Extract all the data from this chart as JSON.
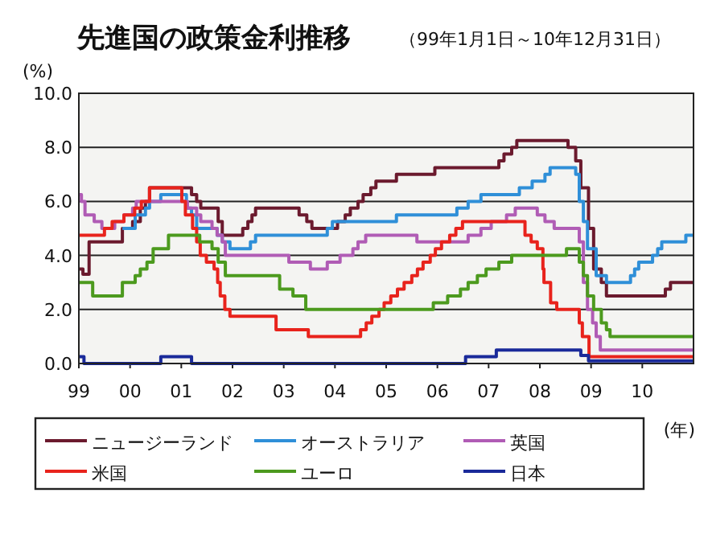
{
  "chart_data": {
    "type": "step",
    "title": "先進国の政策金利推移",
    "subtitle": "（99年1月1日～10年12月31日）",
    "xlabel": "(年)",
    "ylabel": "(%)",
    "xlim": [
      1999,
      2011
    ],
    "ylim": [
      0,
      10
    ],
    "xticks": [
      {
        "value": 1999,
        "label": "99"
      },
      {
        "value": 2000,
        "label": "00"
      },
      {
        "value": 2001,
        "label": "01"
      },
      {
        "value": 2002,
        "label": "02"
      },
      {
        "value": 2003,
        "label": "03"
      },
      {
        "value": 2004,
        "label": "04"
      },
      {
        "value": 2005,
        "label": "05"
      },
      {
        "value": 2006,
        "label": "06"
      },
      {
        "value": 2007,
        "label": "07"
      },
      {
        "value": 2008,
        "label": "08"
      },
      {
        "value": 2009,
        "label": "09"
      },
      {
        "value": 2010,
        "label": "10"
      }
    ],
    "yticks": [
      {
        "value": 0,
        "label": "0.0"
      },
      {
        "value": 2,
        "label": "2.0"
      },
      {
        "value": 4,
        "label": "4.0"
      },
      {
        "value": 6,
        "label": "6.0"
      },
      {
        "value": 8,
        "label": "8.0"
      },
      {
        "value": 10,
        "label": "10.0"
      }
    ],
    "grid": "y",
    "legend": "bottom",
    "marker": "none",
    "line_style": "solid",
    "series": [
      {
        "name": "ニュージーランド",
        "color": "#6b1a2e",
        "x": [
          1999,
          1999.08,
          1999.2,
          1999.85,
          2000.05,
          2000.2,
          2000.3,
          2000.38,
          2001.2,
          2001.3,
          2001.38,
          2001.72,
          2001.8,
          2002.2,
          2002.3,
          2002.38,
          2002.45,
          2003.3,
          2003.45,
          2003.55,
          2004.05,
          2004.2,
          2004.3,
          2004.45,
          2004.55,
          2004.7,
          2004.8,
          2005.2,
          2005.95,
          2007.2,
          2007.3,
          2007.45,
          2007.55,
          2008.55,
          2008.7,
          2008.8,
          2008.95,
          2009.05,
          2009.2,
          2009.3,
          2010.45,
          2010.55,
          2011
        ],
        "values": [
          3.5,
          3.3,
          4.5,
          5.0,
          5.25,
          5.75,
          6.0,
          6.5,
          6.25,
          6.0,
          5.75,
          5.25,
          4.75,
          5.0,
          5.25,
          5.5,
          5.75,
          5.5,
          5.25,
          5.0,
          5.25,
          5.5,
          5.75,
          6.0,
          6.25,
          6.5,
          6.75,
          7.0,
          7.25,
          7.5,
          7.75,
          8.0,
          8.25,
          8.0,
          7.5,
          6.5,
          5.0,
          3.5,
          3.0,
          2.5,
          2.75,
          3.0,
          3.0
        ]
      },
      {
        "name": "オーストラリア",
        "color": "#2f8fd8",
        "x": [
          1999.85,
          2000.1,
          2000.3,
          2000.38,
          2000.6,
          2001.1,
          2001.2,
          2001.3,
          2001.7,
          2001.8,
          2001.95,
          2002.35,
          2002.45,
          2003.85,
          2003.95,
          2005.2,
          2006.38,
          2006.6,
          2006.85,
          2007.6,
          2007.85,
          2008.1,
          2008.2,
          2008.7,
          2008.77,
          2008.85,
          2008.93,
          2009.1,
          2009.3,
          2009.77,
          2009.85,
          2009.93,
          2010.2,
          2010.3,
          2010.38,
          2010.85,
          2011
        ],
        "values": [
          5.0,
          5.5,
          5.75,
          6.0,
          6.25,
          5.75,
          5.5,
          5.0,
          4.75,
          4.5,
          4.25,
          4.5,
          4.75,
          5.0,
          5.25,
          5.5,
          5.75,
          6.0,
          6.25,
          6.5,
          6.75,
          7.0,
          7.25,
          7.0,
          6.0,
          5.25,
          4.25,
          3.25,
          3.0,
          3.25,
          3.5,
          3.75,
          4.0,
          4.25,
          4.5,
          4.75,
          4.75
        ]
      },
      {
        "name": "英国",
        "color": "#b05cb5",
        "x": [
          1999,
          1999.05,
          1999.12,
          1999.3,
          1999.45,
          1999.7,
          1999.88,
          2000.05,
          2000.12,
          2001.12,
          2001.3,
          2001.38,
          2001.6,
          2001.7,
          2001.8,
          2001.86,
          2003.1,
          2003.52,
          2003.85,
          2004.1,
          2004.35,
          2004.45,
          2004.6,
          2005.6,
          2006.6,
          2006.85,
          2007.05,
          2007.35,
          2007.52,
          2007.95,
          2008.1,
          2008.28,
          2008.77,
          2008.85,
          2008.93,
          2009.03,
          2009.1,
          2009.18,
          2011
        ],
        "values": [
          6.25,
          6.0,
          5.5,
          5.25,
          5.0,
          5.25,
          5.5,
          5.75,
          6.0,
          5.75,
          5.5,
          5.25,
          5.0,
          4.75,
          4.5,
          4.0,
          3.75,
          3.5,
          3.75,
          4.0,
          4.25,
          4.5,
          4.75,
          4.5,
          4.75,
          5.0,
          5.25,
          5.5,
          5.75,
          5.5,
          5.25,
          5.0,
          4.5,
          3.0,
          2.0,
          1.5,
          1.0,
          0.5,
          0.5
        ]
      },
      {
        "name": "米国",
        "color": "#e8231c",
        "x": [
          1999,
          1999.5,
          1999.65,
          1999.88,
          2000.09,
          2000.22,
          2000.38,
          2001.01,
          2001.08,
          2001.22,
          2001.3,
          2001.37,
          2001.49,
          2001.64,
          2001.71,
          2001.76,
          2001.85,
          2001.95,
          2002.85,
          2003.48,
          2004.5,
          2004.61,
          2004.72,
          2004.86,
          2004.96,
          2005.09,
          2005.22,
          2005.35,
          2005.5,
          2005.61,
          2005.72,
          2005.86,
          2005.96,
          2006.08,
          2006.24,
          2006.36,
          2006.49,
          2007.71,
          2007.83,
          2007.95,
          2008.06,
          2008.08,
          2008.21,
          2008.33,
          2008.77,
          2008.83,
          2008.96,
          2011
        ],
        "values": [
          4.75,
          5.0,
          5.25,
          5.5,
          5.75,
          6.0,
          6.5,
          6.0,
          5.5,
          5.0,
          4.5,
          4.0,
          3.75,
          3.5,
          3.0,
          2.5,
          2.0,
          1.75,
          1.25,
          1.0,
          1.25,
          1.5,
          1.75,
          2.0,
          2.25,
          2.5,
          2.75,
          3.0,
          3.25,
          3.5,
          3.75,
          4.0,
          4.25,
          4.5,
          4.75,
          5.0,
          5.25,
          4.75,
          4.5,
          4.25,
          3.5,
          3.0,
          2.25,
          2.0,
          1.5,
          1.0,
          0.25,
          0.25
        ]
      },
      {
        "name": "ユーロ",
        "color": "#4c9a1e",
        "x": [
          1999,
          1999.27,
          1999.85,
          2000.1,
          2000.2,
          2000.33,
          2000.45,
          2000.75,
          2001.36,
          2001.6,
          2001.72,
          2001.86,
          2002.92,
          2003.18,
          2003.43,
          2005.92,
          2006.2,
          2006.45,
          2006.6,
          2006.78,
          2006.95,
          2007.2,
          2007.45,
          2008.52,
          2008.77,
          2008.85,
          2008.93,
          2009.05,
          2009.2,
          2009.3,
          2009.37,
          2011
        ],
        "values": [
          3.0,
          2.5,
          3.0,
          3.25,
          3.5,
          3.75,
          4.25,
          4.75,
          4.5,
          4.25,
          3.75,
          3.25,
          2.75,
          2.5,
          2.0,
          2.25,
          2.5,
          2.75,
          3.0,
          3.25,
          3.5,
          3.75,
          4.0,
          4.25,
          3.75,
          3.25,
          2.5,
          2.0,
          1.5,
          1.25,
          1.0,
          1.0
        ]
      },
      {
        "name": "日本",
        "color": "#1a2a9a",
        "x": [
          1999,
          1999.1,
          2000.6,
          2001.2,
          2006.55,
          2007.15,
          2008.8,
          2008.95,
          2011
        ],
        "values": [
          0.25,
          0.0,
          0.25,
          0.0,
          0.25,
          0.5,
          0.3,
          0.1,
          0.1
        ]
      }
    ]
  }
}
